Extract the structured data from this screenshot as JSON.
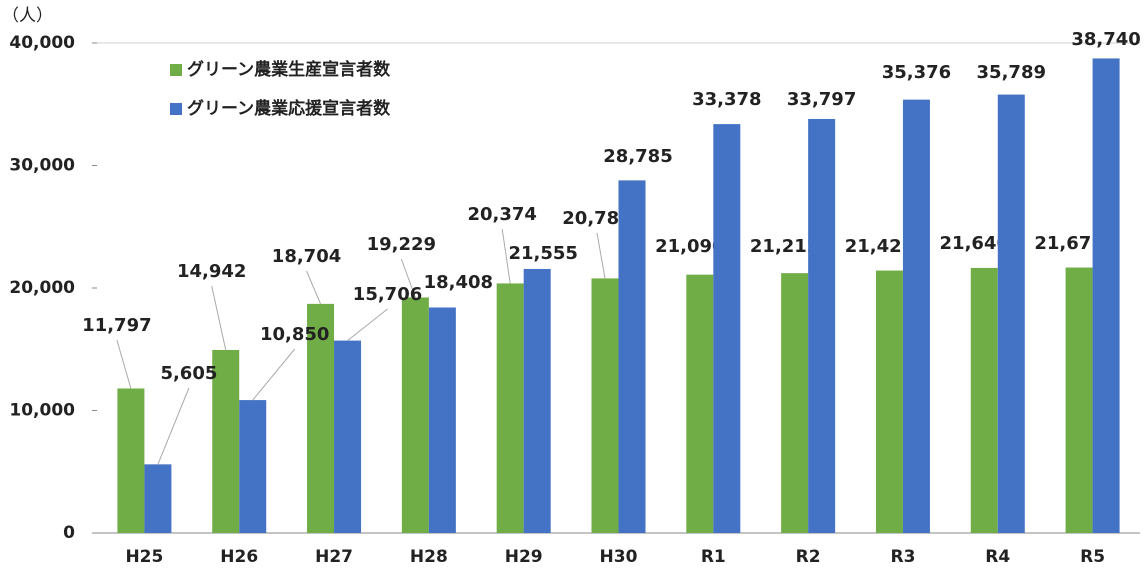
{
  "chart_data": {
    "type": "bar",
    "unit_label": "（人）",
    "categories": [
      "H25",
      "H26",
      "H27",
      "H28",
      "H29",
      "H30",
      "R1",
      "R2",
      "R3",
      "R4",
      "R5"
    ],
    "series": [
      {
        "name": "グリーン農業生産宣言者数",
        "color": "#70ad47",
        "values": [
          11797,
          14942,
          18704,
          19229,
          20374,
          20784,
          21090,
          21212,
          21425,
          21640,
          21671
        ]
      },
      {
        "name": "グリーン農業応援宣言者数",
        "color": "#4472c4",
        "values": [
          5605,
          10850,
          15706,
          18408,
          21555,
          28785,
          33378,
          33797,
          35376,
          35789,
          38740
        ]
      }
    ],
    "value_labels": [
      [
        "11,797",
        "14,942",
        "18,704",
        "19,229",
        "20,374",
        "20,784",
        "21,090",
        "21,212",
        "21,425",
        "21,640",
        "21,671"
      ],
      [
        "5,605",
        "10,850",
        "15,706",
        "18,408",
        "21,555",
        "28,785",
        "33,378",
        "33,797",
        "35,376",
        "35,789",
        "38,740"
      ]
    ],
    "ylim": [
      0,
      40000
    ],
    "yticks": [
      0,
      {
        "value": 10000,
        "label": "10,000"
      },
      {
        "value": 20000,
        "label": "20,000"
      },
      {
        "value": 30000,
        "label": "30,000"
      },
      {
        "value": 40000,
        "label": "40,000"
      }
    ],
    "grid": false
  }
}
